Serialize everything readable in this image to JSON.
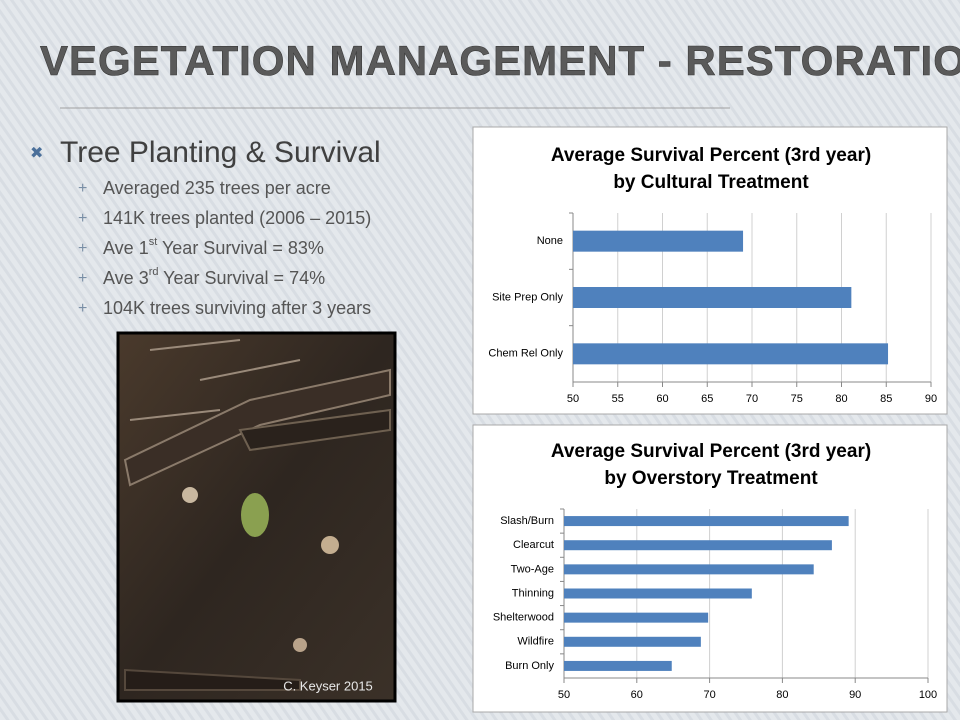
{
  "header": {
    "title": "VEGETATION MANAGEMENT - RESTORATION"
  },
  "bullets": {
    "main": "Tree Planting & Survival",
    "sub": [
      {
        "text": "Averaged 235 trees per acre"
      },
      {
        "text": "141K trees planted (2006 – 2015)"
      },
      {
        "pre": "Ave 1",
        "sup": "st",
        "post": " Year Survival  = 83%"
      },
      {
        "pre": "Ave 3",
        "sup": "rd",
        "post": " Year Survival  = 74%"
      },
      {
        "text": "104K trees surviving after 3 years"
      }
    ]
  },
  "photo": {
    "caption": "C. Keyser 2015"
  },
  "chart_data": [
    {
      "type": "hbar",
      "title": [
        "Average Survival Percent (3rd year)",
        "by Cultural Treatment"
      ],
      "categories": [
        "None",
        "Site Prep Only",
        "Chem Rel Only"
      ],
      "values": [
        69,
        81.1,
        85.2
      ],
      "color": "#4f81bd",
      "xlim": [
        50,
        90
      ],
      "xticks": [
        50,
        55,
        60,
        65,
        70,
        75,
        80,
        85,
        90
      ],
      "grid": true
    },
    {
      "type": "hbar",
      "title": [
        "Average Survival Percent (3rd year)",
        "by Overstory Treatment"
      ],
      "categories": [
        "Slash/Burn",
        "Clearcut",
        "Two-Age",
        "Thinning",
        "Shelterwood",
        "Wildfire",
        "Burn Only"
      ],
      "values": [
        89.1,
        86.8,
        84.3,
        75.8,
        69.8,
        68.8,
        64.8
      ],
      "color": "#4f81bd",
      "xlim": [
        50,
        100
      ],
      "xticks": [
        50,
        60,
        70,
        80,
        90,
        100
      ],
      "grid": true
    }
  ]
}
